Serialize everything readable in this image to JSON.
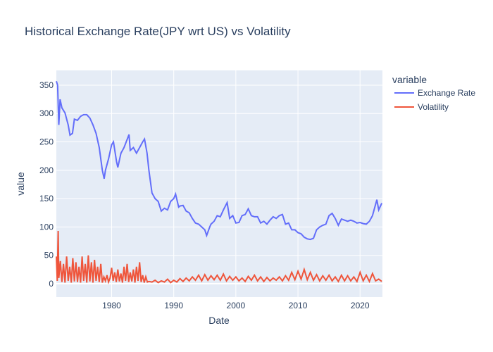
{
  "chart_data": {
    "type": "line",
    "title": "Historical Exchange Rate(JPY wrt US) vs Volatility",
    "x_label": "Date",
    "y_label": "value",
    "legend_title": "variable",
    "legend_position": "right",
    "grid": true,
    "xlim": [
      1971.1,
      2023.6
    ],
    "xticks": [
      1980,
      1990,
      2000,
      2010,
      2020
    ],
    "ylim": [
      -23.6,
      376
    ],
    "yticks": [
      0,
      50,
      100,
      150,
      200,
      250,
      300,
      350
    ],
    "series": [
      {
        "name": "Exchange Rate",
        "color": "#636efa",
        "x": [
          1971.1,
          1971.3,
          1971.5,
          1971.7,
          1972,
          1972.5,
          1973,
          1973.3,
          1973.7,
          1974,
          1974.5,
          1975,
          1975.5,
          1976,
          1976.5,
          1977,
          1977.5,
          1978,
          1978.5,
          1978.8,
          1979,
          1979.5,
          1980,
          1980.3,
          1980.8,
          1981,
          1981.5,
          1982,
          1982.8,
          1983,
          1983.5,
          1984,
          1984.5,
          1985,
          1985.3,
          1985.7,
          1986,
          1986.5,
          1987,
          1987.5,
          1988,
          1988.5,
          1989,
          1989.5,
          1990,
          1990.3,
          1990.8,
          1991,
          1991.5,
          1992,
          1992.5,
          1993,
          1993.5,
          1994,
          1994.5,
          1995,
          1995.3,
          1995.8,
          1996,
          1996.5,
          1997,
          1997.5,
          1998,
          1998.6,
          1999,
          1999.5,
          2000,
          2000.5,
          2001,
          2001.5,
          2002,
          2002.5,
          2003,
          2003.5,
          2004,
          2004.5,
          2005,
          2005.5,
          2006,
          2006.5,
          2007,
          2007.5,
          2008,
          2008.5,
          2009,
          2009.5,
          2010,
          2010.5,
          2011,
          2011.5,
          2012,
          2012.5,
          2013,
          2013.5,
          2014,
          2014.5,
          2015,
          2015.5,
          2016,
          2016.5,
          2017,
          2017.5,
          2018,
          2018.5,
          2019,
          2019.5,
          2020,
          2020.5,
          2021,
          2021.5,
          2022,
          2022.7,
          2023,
          2023.5
        ],
        "values": [
          357,
          350,
          280,
          325,
          310,
          301,
          280,
          262,
          265,
          290,
          288,
          295,
          298,
          298,
          292,
          280,
          265,
          240,
          200,
          185,
          200,
          220,
          245,
          250,
          215,
          205,
          230,
          240,
          263,
          235,
          240,
          230,
          240,
          250,
          255,
          230,
          200,
          160,
          150,
          145,
          128,
          133,
          130,
          145,
          150,
          158,
          135,
          137,
          138,
          128,
          125,
          115,
          107,
          105,
          100,
          95,
          85,
          100,
          105,
          110,
          120,
          118,
          130,
          143,
          115,
          120,
          107,
          108,
          120,
          122,
          132,
          120,
          118,
          118,
          107,
          110,
          105,
          112,
          118,
          115,
          120,
          122,
          105,
          107,
          95,
          95,
          90,
          88,
          82,
          79,
          78,
          80,
          95,
          100,
          103,
          105,
          120,
          124,
          115,
          103,
          114,
          112,
          110,
          112,
          110,
          107,
          108,
          106,
          105,
          110,
          120,
          148,
          130,
          142
        ]
      },
      {
        "name": "Volatility",
        "color": "#EF553B",
        "x": [
          1971.1,
          1971.25,
          1971.4,
          1971.5,
          1971.75,
          1972,
          1972.25,
          1972.5,
          1972.75,
          1973,
          1973.25,
          1973.5,
          1973.75,
          1974,
          1974.25,
          1974.5,
          1974.75,
          1975,
          1975.25,
          1975.5,
          1975.75,
          1976,
          1976.25,
          1976.5,
          1976.75,
          1977,
          1977.25,
          1977.5,
          1977.75,
          1978,
          1978.25,
          1978.5,
          1978.75,
          1979,
          1979.25,
          1979.5,
          1979.75,
          1980,
          1980.25,
          1980.5,
          1980.75,
          1981,
          1981.25,
          1981.5,
          1981.75,
          1982,
          1982.25,
          1982.5,
          1982.75,
          1983,
          1983.25,
          1983.5,
          1983.75,
          1984,
          1984.25,
          1984.5,
          1984.75,
          1985,
          1985.25,
          1985.5,
          1985.75,
          1986,
          1986.5,
          1987,
          1987.5,
          1988,
          1988.5,
          1989,
          1989.5,
          1990,
          1990.5,
          1991,
          1991.5,
          1992,
          1992.5,
          1993,
          1993.5,
          1994,
          1994.5,
          1995,
          1995.5,
          1996,
          1996.5,
          1997,
          1997.5,
          1998,
          1998.5,
          1999,
          1999.5,
          2000,
          2000.5,
          2001,
          2001.5,
          2002,
          2002.5,
          2003,
          2003.5,
          2004,
          2004.5,
          2005,
          2005.5,
          2006,
          2006.5,
          2007,
          2007.5,
          2008,
          2008.5,
          2009,
          2009.5,
          2010,
          2010.5,
          2011,
          2011.5,
          2012,
          2012.5,
          2013,
          2013.5,
          2014,
          2014.5,
          2015,
          2015.5,
          2016,
          2016.5,
          2017,
          2017.5,
          2018,
          2018.5,
          2019,
          2019.5,
          2020,
          2020.5,
          2021,
          2021.5,
          2022,
          2022.5,
          2023,
          2023.5
        ],
        "values": [
          48,
          5,
          93,
          10,
          40,
          3,
          35,
          2,
          48,
          5,
          30,
          2,
          45,
          4,
          38,
          3,
          30,
          2,
          48,
          5,
          35,
          2,
          50,
          4,
          38,
          2,
          42,
          5,
          30,
          3,
          35,
          2,
          12,
          5,
          15,
          3,
          10,
          28,
          5,
          20,
          3,
          25,
          4,
          18,
          2,
          30,
          5,
          35,
          3,
          20,
          4,
          25,
          2,
          30,
          5,
          38,
          3,
          15,
          2,
          12,
          3,
          4,
          3,
          6,
          2,
          5,
          3,
          8,
          2,
          6,
          3,
          9,
          4,
          10,
          5,
          12,
          6,
          15,
          5,
          16,
          6,
          14,
          7,
          15,
          6,
          17,
          5,
          13,
          6,
          12,
          5,
          10,
          4,
          13,
          6,
          15,
          5,
          12,
          4,
          11,
          5,
          10,
          6,
          12,
          5,
          14,
          6,
          20,
          7,
          22,
          8,
          25,
          7,
          20,
          6,
          16,
          5,
          14,
          6,
          15,
          5,
          12,
          4,
          15,
          5,
          14,
          5,
          12,
          4,
          20,
          5,
          15,
          4,
          18,
          5,
          8,
          4
        ]
      }
    ]
  }
}
